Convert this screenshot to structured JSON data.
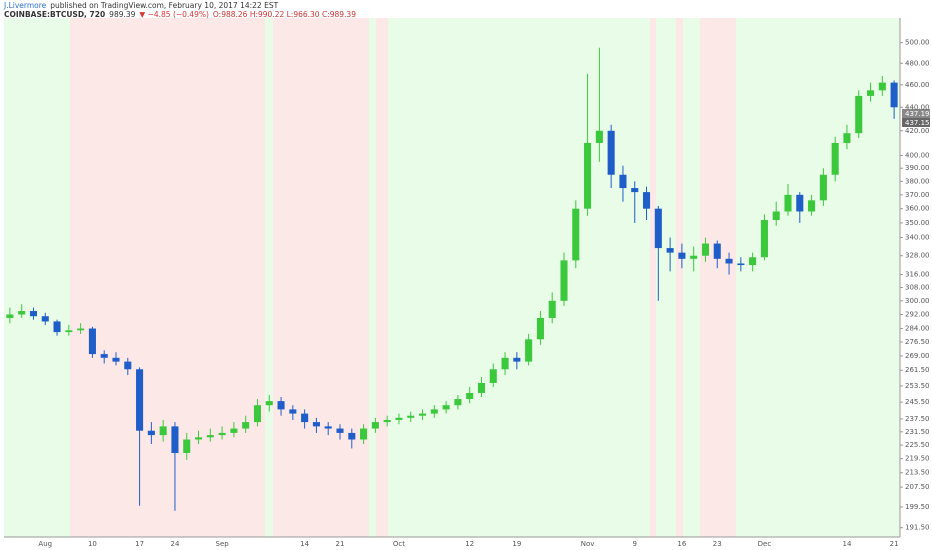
{
  "header": {
    "author": "J.Livermore",
    "published": "published on TradingView.com, February 10, 2017 14:22 EST",
    "symbol": "COINBASE:BTCUSD, 720",
    "last": "989.39",
    "change": "▼ −4.85 (−0.49%)",
    "ohlc": "O:988.26 H:990.22 L:966.30 C:989.39"
  },
  "chart_data": {
    "type": "candlestick",
    "log_scale": true,
    "grid": false,
    "up_color": "#3cc83c",
    "down_color": "#1f5ec8",
    "price_labels": [
      "437.19",
      "437.15"
    ],
    "categories": [
      null,
      null,
      null,
      "Aug",
      null,
      null,
      null,
      "10",
      null,
      null,
      null,
      "17",
      null,
      null,
      "24",
      null,
      null,
      null,
      "Sep",
      null,
      null,
      null,
      null,
      null,
      null,
      "14",
      null,
      null,
      "21",
      null,
      null,
      null,
      null,
      "Oct",
      null,
      null,
      null,
      null,
      null,
      "12",
      null,
      null,
      null,
      "19",
      null,
      null,
      null,
      null,
      null,
      "Nov",
      null,
      null,
      null,
      "9",
      null,
      null,
      null,
      "16",
      null,
      null,
      "23",
      null,
      null,
      null,
      "Dec",
      null,
      null,
      null,
      null,
      null,
      null,
      "14",
      null,
      null,
      null,
      "21"
    ],
    "open": [
      290,
      292,
      294,
      291,
      288,
      282,
      283,
      284,
      270,
      268,
      266,
      262,
      232,
      230,
      234,
      222,
      228,
      229,
      230,
      231,
      233,
      236,
      244,
      246,
      242,
      240,
      236,
      234,
      233,
      231,
      228,
      233,
      236,
      237,
      238,
      239,
      240,
      242,
      244,
      247,
      250,
      255,
      262,
      268,
      266,
      278,
      290,
      300,
      325,
      360,
      410,
      420,
      385,
      375,
      372,
      360,
      333,
      330,
      326,
      328,
      336,
      326,
      323,
      322,
      327,
      352,
      358,
      370,
      358,
      366,
      385,
      410,
      418,
      450,
      455,
      462
    ],
    "high": [
      296,
      298,
      296,
      293,
      289,
      286,
      287,
      285,
      272,
      271,
      268,
      263,
      236,
      237,
      236,
      231,
      232,
      233,
      234,
      236,
      239,
      247,
      249,
      248,
      244,
      242,
      238,
      236,
      235,
      233,
      235,
      238,
      239,
      240,
      241,
      242,
      244,
      246,
      249,
      253,
      258,
      265,
      271,
      271,
      281,
      294,
      305,
      330,
      366,
      470,
      495,
      425,
      392,
      380,
      376,
      362,
      340,
      336,
      334,
      340,
      338,
      330,
      327,
      330,
      356,
      365,
      378,
      372,
      370,
      390,
      415,
      425,
      455,
      462,
      468,
      464
    ],
    "low": [
      287,
      290,
      289,
      286,
      280,
      280,
      281,
      268,
      265,
      264,
      259,
      200,
      226,
      227,
      198,
      219,
      226,
      227,
      228,
      229,
      231,
      234,
      241,
      239,
      237,
      233,
      231,
      230,
      228,
      224,
      226,
      231,
      234,
      235,
      236,
      237,
      238,
      240,
      242,
      245,
      248,
      253,
      259,
      262,
      264,
      275,
      287,
      297,
      320,
      355,
      395,
      375,
      365,
      350,
      352,
      300,
      318,
      320,
      318,
      324,
      320,
      316,
      318,
      318,
      325,
      348,
      355,
      350,
      355,
      362,
      380,
      405,
      414,
      445,
      450,
      430
    ],
    "close": [
      292,
      294,
      291,
      288,
      282,
      283,
      284,
      270,
      268,
      266,
      262,
      232,
      230,
      234,
      222,
      228,
      229,
      230,
      231,
      233,
      236,
      244,
      246,
      242,
      240,
      236,
      234,
      233,
      231,
      228,
      233,
      236,
      237,
      238,
      239,
      240,
      242,
      244,
      247,
      250,
      255,
      262,
      268,
      266,
      278,
      290,
      300,
      325,
      360,
      410,
      420,
      385,
      375,
      372,
      360,
      333,
      330,
      326,
      328,
      336,
      326,
      323,
      322,
      327,
      352,
      358,
      370,
      358,
      366,
      385,
      410,
      418,
      450,
      455,
      462,
      440
    ],
    "ylim": [
      188,
      525
    ],
    "yticks": [
      {
        "value": 500,
        "label": "500.00"
      },
      {
        "value": 480,
        "label": "480.00"
      },
      {
        "value": 460,
        "label": "460.00"
      },
      {
        "value": 440,
        "label": "440.00"
      },
      {
        "value": 420,
        "label": "420.00"
      },
      {
        "value": 400,
        "label": "400.00"
      },
      {
        "value": 390,
        "label": "390.00"
      },
      {
        "value": 380,
        "label": "380.00"
      },
      {
        "value": 370,
        "label": "370.00"
      },
      {
        "value": 360,
        "label": "360.00"
      },
      {
        "value": 350,
        "label": "350.00"
      },
      {
        "value": 340,
        "label": "340.00"
      },
      {
        "value": 328,
        "label": "328.00"
      },
      {
        "value": 316,
        "label": "316.00"
      },
      {
        "value": 308,
        "label": "308.00"
      },
      {
        "value": 300,
        "label": "300.00"
      },
      {
        "value": 292,
        "label": "292.00"
      },
      {
        "value": 284,
        "label": "284.00"
      },
      {
        "value": 276.5,
        "label": "276.50"
      },
      {
        "value": 269,
        "label": "269.00"
      },
      {
        "value": 261.5,
        "label": "261.50"
      },
      {
        "value": 253.5,
        "label": "253.50"
      },
      {
        "value": 245.5,
        "label": "245.50"
      },
      {
        "value": 237.5,
        "label": "237.50"
      },
      {
        "value": 231.5,
        "label": "231.50"
      },
      {
        "value": 225.5,
        "label": "225.50"
      },
      {
        "value": 219.5,
        "label": "219.50"
      },
      {
        "value": 213.5,
        "label": "213.50"
      },
      {
        "value": 207.5,
        "label": "207.50"
      },
      {
        "value": 199.5,
        "label": "199.50"
      },
      {
        "value": 191.5,
        "label": "191.50"
      }
    ]
  }
}
